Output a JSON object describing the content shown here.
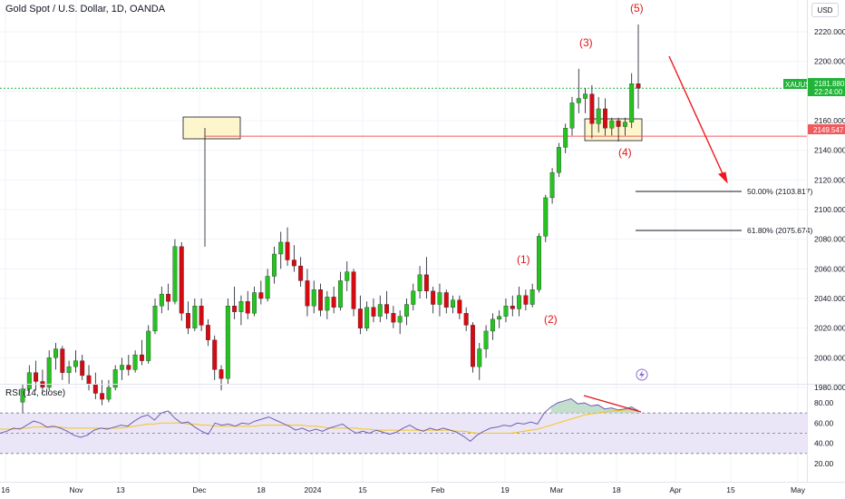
{
  "header": {
    "title": "Gold Spot / U.S. Dollar, 1D, OANDA",
    "currency": "USD"
  },
  "rsi_panel": {
    "label": "RSI (14, close)",
    "ticks": [
      "80.00",
      "60.00",
      "40.00",
      "20.00"
    ]
  },
  "colors": {
    "up": "#26c21f",
    "down": "#d50b12",
    "price_line": "#22b33a",
    "resistance_line": "#f05a5e",
    "arrow": "#f0181e",
    "rsi_line": "#6e5fb3",
    "rsi_ma": "#f5c518",
    "rsi_band": "#ebe6f7",
    "box_fill": "#fdf5cc",
    "annotation": "#e0161a"
  },
  "price_tags": {
    "current_symbol": "XAUUSD",
    "current_price": "2181.880",
    "countdown": "22:24:00",
    "resistance": "2149.547"
  },
  "annotations": {
    "wave_labels": [
      "(1)",
      "(2)",
      "(3)",
      "(4)",
      "(5)"
    ],
    "fib_50": "50.00% (2103.817)",
    "fib_618": "61.80% (2075.674)"
  },
  "chart_data": [
    {
      "type": "candlestick",
      "title": "Gold Spot / U.S. Dollar, 1D, OANDA",
      "y_ticks": [
        "1980.000",
        "2000.000",
        "2020.000",
        "2040.000",
        "2060.000",
        "2080.000",
        "2100.000",
        "2120.000",
        "2140.000",
        "2160.000",
        "2180.000",
        "2200.000",
        "2220.000"
      ],
      "x_ticks": [
        "16",
        "Nov",
        "13",
        "Dec",
        "18",
        "2024",
        "15",
        "Feb",
        "19",
        "Mar",
        "18",
        "Apr",
        "15",
        "May"
      ],
      "ylim": [
        1975,
        2230
      ],
      "levels": {
        "current": 2181.88,
        "resistance": 2149.547,
        "fib_50": 2103.817,
        "fib_618": 2075.674
      },
      "candles": [
        [
          1970,
          1982,
          1962,
          1979
        ],
        [
          1979,
          1995,
          1976,
          1990
        ],
        [
          1990,
          1998,
          1978,
          1984
        ],
        [
          1984,
          1992,
          1976,
          1980
        ],
        [
          1980,
          2005,
          1978,
          2000
        ],
        [
          2000,
          2010,
          1992,
          2006
        ],
        [
          2006,
          2008,
          1985,
          1990
        ],
        [
          1990,
          1998,
          1982,
          1994
        ],
        [
          1994,
          2005,
          1990,
          1998
        ],
        [
          1998,
          2002,
          1985,
          1988
        ],
        [
          1988,
          1995,
          1978,
          1982
        ],
        [
          1982,
          1990,
          1972,
          1976
        ],
        [
          1976,
          1985,
          1968,
          1972
        ],
        [
          1972,
          1985,
          1970,
          1980
        ],
        [
          1980,
          1995,
          1978,
          1992
        ],
        [
          1992,
          2000,
          1985,
          1995
        ],
        [
          1995,
          2002,
          1988,
          1992
        ],
        [
          1992,
          2005,
          1990,
          2002
        ],
        [
          2002,
          2012,
          1995,
          1998
        ],
        [
          1998,
          2022,
          1996,
          2018
        ],
        [
          2018,
          2040,
          2016,
          2035
        ],
        [
          2035,
          2048,
          2030,
          2043
        ],
        [
          2043,
          2050,
          2032,
          2038
        ],
        [
          2038,
          2080,
          2036,
          2075
        ],
        [
          2075,
          2078,
          2025,
          2030
        ],
        [
          2030,
          2038,
          2016,
          2020
        ],
        [
          2020,
          2040,
          2018,
          2035
        ],
        [
          2035,
          2040,
          2018,
          2022
        ],
        [
          2022,
          2026,
          2008,
          2012
        ],
        [
          2012,
          2015,
          1985,
          1992
        ],
        [
          1992,
          1995,
          1978,
          1986
        ],
        [
          1986,
          2040,
          1982,
          2035
        ],
        [
          2035,
          2048,
          2026,
          2031
        ],
        [
          2031,
          2042,
          2022,
          2038
        ],
        [
          2038,
          2045,
          2026,
          2030
        ],
        [
          2030,
          2048,
          2028,
          2044
        ],
        [
          2044,
          2052,
          2036,
          2040
        ],
        [
          2040,
          2060,
          2038,
          2055
        ],
        [
          2055,
          2075,
          2050,
          2070
        ],
        [
          2070,
          2085,
          2060,
          2078
        ],
        [
          2078,
          2088,
          2062,
          2066
        ],
        [
          2066,
          2076,
          2058,
          2062
        ],
        [
          2062,
          2068,
          2048,
          2052
        ],
        [
          2052,
          2060,
          2028,
          2035
        ],
        [
          2035,
          2052,
          2030,
          2046
        ],
        [
          2046,
          2050,
          2028,
          2032
        ],
        [
          2032,
          2045,
          2026,
          2041
        ],
        [
          2041,
          2048,
          2030,
          2034
        ],
        [
          2034,
          2058,
          2032,
          2052
        ],
        [
          2052,
          2065,
          2045,
          2058
        ],
        [
          2058,
          2060,
          2028,
          2033
        ],
        [
          2033,
          2042,
          2016,
          2020
        ],
        [
          2020,
          2038,
          2018,
          2034
        ],
        [
          2034,
          2040,
          2024,
          2028
        ],
        [
          2028,
          2042,
          2024,
          2036
        ],
        [
          2036,
          2045,
          2026,
          2030
        ],
        [
          2030,
          2035,
          2020,
          2024
        ],
        [
          2024,
          2032,
          2016,
          2028
        ],
        [
          2028,
          2040,
          2022,
          2036
        ],
        [
          2036,
          2050,
          2032,
          2045
        ],
        [
          2045,
          2062,
          2040,
          2056
        ],
        [
          2056,
          2068,
          2040,
          2045
        ],
        [
          2045,
          2048,
          2030,
          2036
        ],
        [
          2036,
          2050,
          2028,
          2044
        ],
        [
          2044,
          2046,
          2030,
          2034
        ],
        [
          2034,
          2042,
          2030,
          2039
        ],
        [
          2039,
          2042,
          2026,
          2030
        ],
        [
          2030,
          2034,
          2018,
          2022
        ],
        [
          2022,
          2024,
          1990,
          1994
        ],
        [
          1994,
          2010,
          1985,
          2006
        ],
        [
          2006,
          2022,
          2000,
          2018
        ],
        [
          2018,
          2030,
          2012,
          2026
        ],
        [
          2026,
          2032,
          2020,
          2028
        ],
        [
          2028,
          2040,
          2024,
          2035
        ],
        [
          2035,
          2042,
          2028,
          2033
        ],
        [
          2033,
          2048,
          2028,
          2042
        ],
        [
          2042,
          2046,
          2032,
          2036
        ],
        [
          2036,
          2050,
          2034,
          2046
        ],
        [
          2046,
          2084,
          2044,
          2082
        ],
        [
          2082,
          2110,
          2078,
          2108
        ],
        [
          2108,
          2128,
          2104,
          2125
        ],
        [
          2125,
          2145,
          2122,
          2142
        ],
        [
          2142,
          2158,
          2138,
          2155
        ],
        [
          2155,
          2176,
          2150,
          2172
        ],
        [
          2172,
          2195,
          2165,
          2175
        ],
        [
          2175,
          2182,
          2165,
          2178
        ],
        [
          2178,
          2184,
          2148,
          2158
        ],
        [
          2158,
          2176,
          2152,
          2168
        ],
        [
          2168,
          2175,
          2150,
          2155
        ],
        [
          2155,
          2162,
          2150,
          2160
        ],
        [
          2160,
          2162,
          2146,
          2156
        ],
        [
          2156,
          2162,
          2150,
          2159
        ],
        [
          2159,
          2192,
          2155,
          2185
        ],
        [
          2185,
          2225,
          2168,
          2181.88
        ]
      ]
    },
    {
      "type": "line",
      "name": "RSI (14, close)",
      "ylim": [
        10,
        95
      ],
      "bands": [
        70,
        50,
        30
      ],
      "rsi": [
        50,
        52,
        55,
        54,
        58,
        62,
        60,
        56,
        57,
        55,
        52,
        48,
        46,
        48,
        53,
        55,
        54,
        56,
        58,
        57,
        62,
        66,
        68,
        63,
        70,
        72,
        65,
        60,
        61,
        56,
        52,
        49,
        60,
        58,
        59,
        57,
        60,
        59,
        62,
        64,
        66,
        63,
        60,
        57,
        53,
        55,
        52,
        54,
        52,
        55,
        57,
        59,
        54,
        50,
        52,
        50,
        53,
        51,
        49,
        51,
        55,
        58,
        54,
        52,
        55,
        53,
        55,
        53,
        51,
        47,
        42,
        48,
        52,
        55,
        56,
        58,
        57,
        60,
        59,
        61,
        59,
        70,
        76,
        80,
        82,
        84,
        79,
        80,
        77,
        78,
        74,
        75,
        73,
        74,
        76,
        72
      ],
      "ma": [
        54,
        54,
        54,
        55,
        55,
        56,
        56,
        56,
        56,
        56,
        55,
        55,
        55,
        55,
        55,
        55,
        55,
        55,
        55,
        56,
        57,
        58,
        59,
        59,
        60,
        60,
        60,
        60,
        59,
        59,
        58,
        58,
        57,
        57,
        57,
        57,
        57,
        57,
        57,
        58,
        58,
        58,
        58,
        58,
        58,
        58,
        57,
        57,
        56,
        55,
        55,
        55,
        55,
        55,
        54,
        54,
        53,
        53,
        53,
        53,
        53,
        53,
        53,
        53,
        53,
        53,
        53,
        53,
        52,
        52,
        51,
        50,
        50,
        50,
        50,
        50,
        50,
        51,
        52,
        53,
        54,
        56,
        58,
        60,
        62,
        64,
        66,
        68,
        69,
        70,
        71,
        72,
        72,
        73,
        73,
        73
      ]
    }
  ]
}
